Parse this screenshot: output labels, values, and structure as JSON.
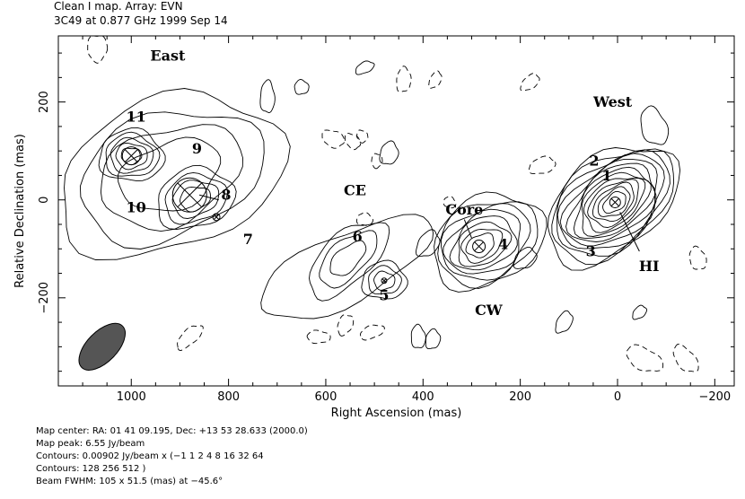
{
  "header": {
    "line1": "Clean I map.  Array:  EVN",
    "line2": "3C49 at 0.877 GHz 1999 Sep 14"
  },
  "chart_data": {
    "type": "contour",
    "xlabel": "Right Ascension   (mas)",
    "ylabel": "Relative Declination   (mas)",
    "xlim": [
      1150,
      -240
    ],
    "ylim": [
      -380,
      335
    ],
    "x_ticks": [
      1000,
      800,
      600,
      400,
      200,
      0,
      -200
    ],
    "y_ticks": [
      200,
      0,
      -200
    ],
    "x_tick_labels": [
      "1000",
      "800",
      "600",
      "400",
      "200",
      "0",
      "−200"
    ],
    "y_tick_labels": [
      "200",
      "0",
      "−200"
    ],
    "region_labels": [
      {
        "text": "East",
        "x": 925,
        "y": 285
      },
      {
        "text": "West",
        "x": 10,
        "y": 190
      },
      {
        "text": "CE",
        "x": 540,
        "y": 10
      },
      {
        "text": "CW",
        "x": 265,
        "y": -235
      },
      {
        "text": "Core",
        "x": 315,
        "y": -30
      },
      {
        "text": "HI",
        "x": -65,
        "y": -145
      }
    ],
    "component_labels": [
      {
        "text": "1",
        "x": 22,
        "y": 40
      },
      {
        "text": "2",
        "x": 48,
        "y": 70
      },
      {
        "text": "3",
        "x": 55,
        "y": -115
      },
      {
        "text": "4",
        "x": 235,
        "y": -100
      },
      {
        "text": "5",
        "x": 480,
        "y": -205
      },
      {
        "text": "6",
        "x": 535,
        "y": -85
      },
      {
        "text": "7",
        "x": 760,
        "y": -90
      },
      {
        "text": "8",
        "x": 805,
        "y": 0
      },
      {
        "text": "9",
        "x": 865,
        "y": 95
      },
      {
        "text": "10",
        "x": 990,
        "y": -25
      },
      {
        "text": "11",
        "x": 990,
        "y": 160
      }
    ],
    "components": [
      {
        "name": "1",
        "ra": 5,
        "dec": -5,
        "levels": 13
      },
      {
        "name": "Core",
        "ra": 285,
        "dec": -95,
        "levels": 8
      },
      {
        "name": "8",
        "ra": 880,
        "dec": 10,
        "levels": 7
      },
      {
        "name": "11",
        "ra": 1000,
        "dec": 90,
        "levels": 7
      },
      {
        "name": "6",
        "ra": 555,
        "dec": -120,
        "levels": 3
      },
      {
        "name": "5",
        "ra": 480,
        "dec": -165,
        "levels": 3
      }
    ],
    "beam": {
      "ra": 1060,
      "dec": -300,
      "major_mas": 105,
      "minor_mas": 51.5,
      "pa_deg": -45.6
    }
  },
  "footer": {
    "line1": "Map center:  RA: 01 41 09.195,  Dec: +13 53 28.633 (2000.0)",
    "line2": "Map peak: 6.55 Jy/beam",
    "line3": "Contours: 0.00902 Jy/beam x (−1 1 2 4 8 16 32 64",
    "line4": "Contours: 128 256 512 )",
    "line5": "Beam FWHM: 105 x 51.5 (mas) at −45.6°"
  }
}
